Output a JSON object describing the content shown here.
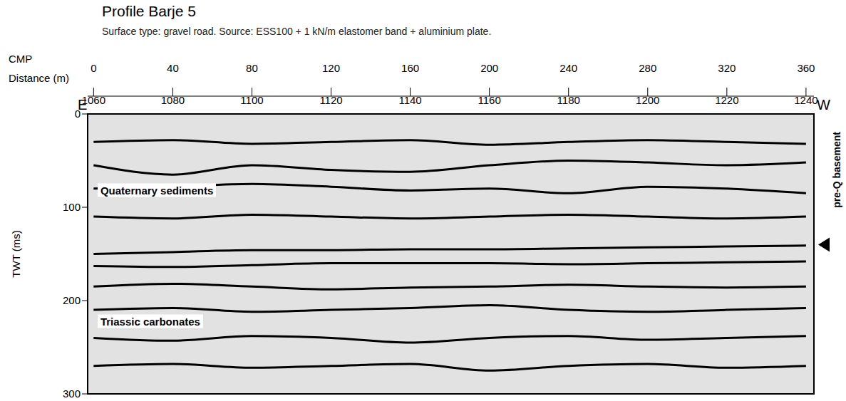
{
  "chart_data": {
    "type": "line",
    "title": "Profile Barje 5",
    "subtitle": "Surface type: gravel road. Source: ESS100 + 1 kN/m elastomer band + aluminium plate.",
    "x_label": "Distance (m)",
    "x2_label": "CMP",
    "y_label": "TWT (ms)",
    "ends": {
      "left": "E",
      "right": "W"
    },
    "x": [
      0,
      40,
      80,
      120,
      160,
      200,
      240,
      280,
      320,
      360
    ],
    "xlim": [
      -3,
      364
    ],
    "xticks": [
      0,
      40,
      80,
      120,
      160,
      200,
      240,
      280,
      320,
      360
    ],
    "x2lim": [
      1058.5,
      1242
    ],
    "x2ticks": [
      1060,
      1080,
      1100,
      1120,
      1140,
      1160,
      1180,
      1200,
      1220,
      1240
    ],
    "ylim": [
      0,
      300
    ],
    "yticks": [
      0,
      100,
      200,
      300
    ],
    "grid": false,
    "series": [
      {
        "color": "#000000",
        "values": [
          30,
          28,
          32,
          30,
          28,
          33,
          30,
          28,
          30,
          32
        ]
      },
      {
        "color": "#000000",
        "values": [
          55,
          65,
          55,
          60,
          62,
          55,
          50,
          52,
          55,
          52
        ]
      },
      {
        "color": "#000000",
        "values": [
          80,
          78,
          75,
          78,
          82,
          80,
          85,
          78,
          80,
          85
        ]
      },
      {
        "color": "#000000",
        "values": [
          110,
          112,
          108,
          110,
          112,
          110,
          108,
          110,
          112,
          110
        ]
      },
      {
        "color": "#000000",
        "values": [
          150,
          148,
          146,
          146,
          145,
          145,
          144,
          143,
          142,
          141
        ]
      },
      {
        "color": "#000000",
        "values": [
          163,
          164,
          162,
          160,
          160,
          160,
          161,
          160,
          159,
          158
        ]
      },
      {
        "color": "#000000",
        "values": [
          185,
          182,
          185,
          188,
          186,
          185,
          183,
          185,
          186,
          185
        ]
      },
      {
        "color": "#000000",
        "values": [
          210,
          208,
          212,
          210,
          208,
          205,
          210,
          212,
          210,
          208
        ]
      },
      {
        "color": "#000000",
        "values": [
          240,
          243,
          238,
          240,
          245,
          240,
          238,
          242,
          240,
          238
        ]
      },
      {
        "color": "#000000",
        "values": [
          270,
          268,
          272,
          270,
          268,
          275,
          270,
          268,
          272,
          270
        ]
      }
    ],
    "annotations": [
      {
        "text": "Quaternary sediments",
        "x": 2,
        "y": 82
      },
      {
        "text": "Triassic carbonates",
        "x": 2,
        "y": 222
      },
      {
        "text": "pre-Q basement",
        "y": 140
      }
    ]
  }
}
